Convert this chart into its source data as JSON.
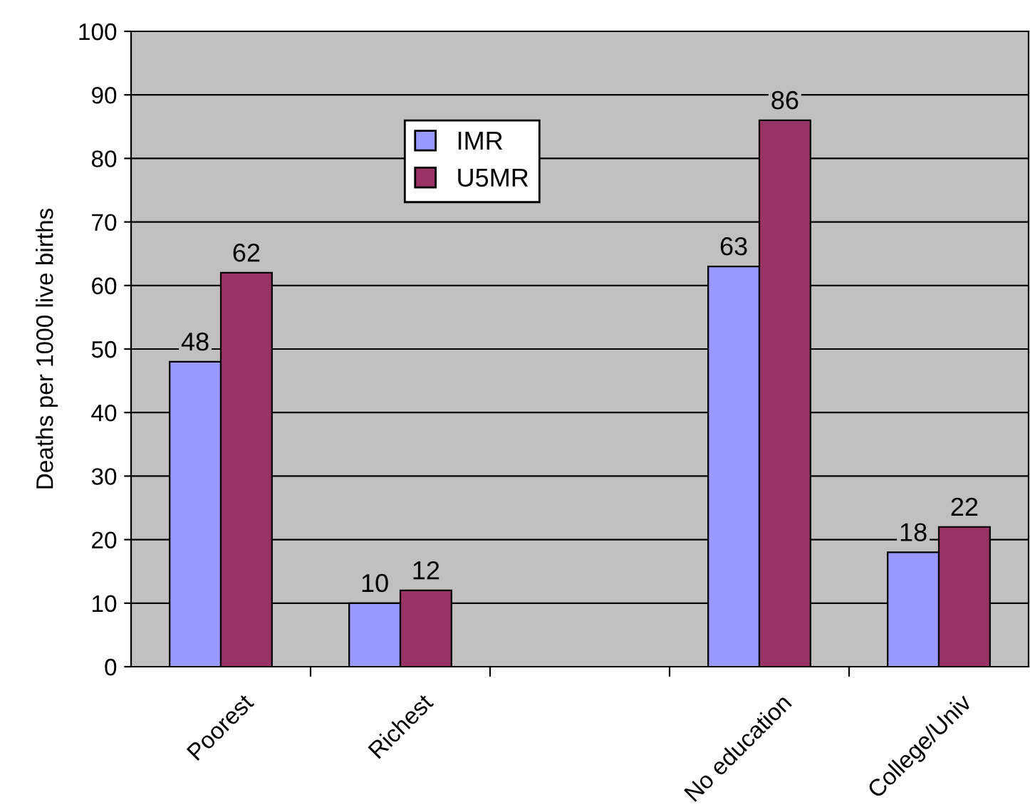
{
  "chart_data": {
    "type": "bar",
    "ylabel": "Deaths per 1000 live births",
    "categories": [
      "Poorest",
      "Richest",
      null,
      "No education",
      "College/Univ"
    ],
    "series": [
      {
        "name": "IMR",
        "color": "#9999ff",
        "values": [
          48,
          10,
          null,
          63,
          18
        ]
      },
      {
        "name": "U5MR",
        "color": "#993366",
        "values": [
          62,
          12,
          null,
          86,
          22
        ]
      }
    ],
    "ylim": [
      0,
      100
    ],
    "yticks": [
      0,
      10,
      20,
      30,
      40,
      50,
      60,
      70,
      80,
      90,
      100
    ],
    "grid": "y",
    "legend": "top",
    "data_labels": true
  }
}
